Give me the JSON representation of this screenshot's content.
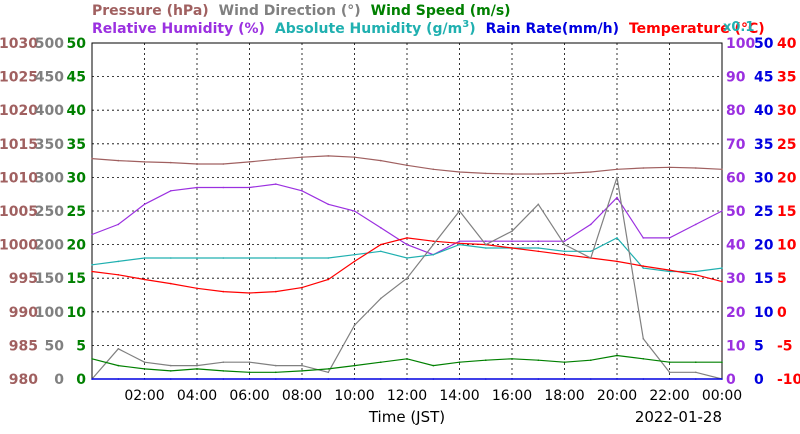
{
  "legend": {
    "row1": [
      {
        "text": "Pressure (hPa)",
        "color": "#a06060"
      },
      {
        "text": "Wind Direction (°)",
        "color": "#808080"
      },
      {
        "text": "Wind Speed (m/s)",
        "color": "#008000"
      }
    ],
    "row2": [
      {
        "text": "Relative Humidity (%)",
        "color": "#9b30e0"
      },
      {
        "text": "Absolute Humidity (g/m",
        "sup": "3",
        "close": ")",
        "color": "#20b0b0"
      },
      {
        "text": "Rain Rate(mm/h)",
        "color": "#0000e0"
      },
      {
        "text": "Temperature (°C)",
        "color": "#ff0000"
      }
    ],
    "factor": "x0.1",
    "factor_color": "#20b0b0"
  },
  "axes": {
    "pressure": {
      "ticks": [
        "1030",
        "1025",
        "1020",
        "1015",
        "1010",
        "1005",
        "1000",
        "995",
        "990",
        "985",
        "980"
      ],
      "color": "#a06060"
    },
    "wind_dir": {
      "ticks": [
        "500",
        "450",
        "400",
        "350",
        "300",
        "250",
        "200",
        "150",
        "100",
        "50",
        "0"
      ],
      "color": "#808080"
    },
    "wind_speed": {
      "ticks": [
        "50",
        "45",
        "40",
        "35",
        "30",
        "25",
        "20",
        "15",
        "10",
        "5",
        "0"
      ],
      "color": "#008000"
    },
    "humidity": {
      "ticks": [
        "100",
        "90",
        "80",
        "70",
        "60",
        "50",
        "40",
        "30",
        "20",
        "10",
        "0"
      ],
      "color": "#9b30e0"
    },
    "rain": {
      "ticks": [
        "50",
        "45",
        "40",
        "35",
        "30",
        "25",
        "20",
        "15",
        "10",
        "5",
        "0"
      ],
      "color": "#0000e0"
    },
    "temperature": {
      "ticks": [
        "40",
        "35",
        "30",
        "25",
        "20",
        "15",
        "10",
        "5",
        "0",
        "-5",
        "-10"
      ],
      "color": "#ff0000"
    }
  },
  "x_ticks": [
    "02:00",
    "04:00",
    "06:00",
    "08:00",
    "10:00",
    "12:00",
    "14:00",
    "16:00",
    "18:00",
    "20:00",
    "22:00",
    "00:00"
  ],
  "xlabel": "Time (JST)",
  "date": "2022-01-28",
  "chart_data": {
    "type": "line",
    "xlabel": "Time (JST)",
    "date": "2022-01-28",
    "x_hours": [
      0,
      1,
      2,
      3,
      4,
      5,
      6,
      7,
      8,
      9,
      10,
      11,
      12,
      13,
      14,
      15,
      16,
      17,
      18,
      19,
      20,
      21,
      22,
      23,
      24
    ],
    "series": [
      {
        "name": "Pressure (hPa)",
        "axis": "pressure",
        "color": "#a06060",
        "values": [
          1012.8,
          1012.5,
          1012.3,
          1012.2,
          1012.0,
          1012.0,
          1012.3,
          1012.7,
          1013.0,
          1013.2,
          1013.0,
          1012.5,
          1011.8,
          1011.2,
          1010.8,
          1010.6,
          1010.5,
          1010.5,
          1010.6,
          1010.8,
          1011.2,
          1011.4,
          1011.5,
          1011.4,
          1011.2
        ]
      },
      {
        "name": "Relative Humidity (%)",
        "axis": "humidity",
        "color": "#9b30e0",
        "values": [
          43,
          46,
          52,
          56,
          57,
          57,
          57,
          58,
          56,
          52,
          50,
          45,
          40,
          37,
          41,
          41,
          41,
          41,
          41,
          46,
          54,
          42,
          42,
          46,
          50
        ]
      },
      {
        "name": "Absolute Humidity (g/m3) x0.1",
        "axis": "humidity",
        "color": "#20b0b0",
        "values": [
          34,
          35,
          36,
          36,
          36,
          36,
          36,
          36,
          36,
          36,
          37,
          38,
          36,
          37,
          40,
          39,
          39,
          39,
          38,
          38,
          42,
          33,
          32,
          32,
          33
        ]
      },
      {
        "name": "Temperature (°C)",
        "axis": "temperature",
        "color": "#ff0000",
        "values": [
          6.0,
          5.5,
          4.8,
          4.2,
          3.5,
          3.0,
          2.8,
          3.0,
          3.6,
          4.8,
          7.5,
          10.0,
          11.0,
          10.5,
          10.2,
          10.0,
          9.5,
          9.0,
          8.5,
          8.0,
          7.5,
          6.8,
          6.2,
          5.5,
          4.5
        ]
      },
      {
        "name": "Wind Direction (°)",
        "axis": "wind_dir",
        "color": "#808080",
        "values": [
          0,
          45,
          25,
          20,
          20,
          25,
          25,
          20,
          20,
          10,
          80,
          120,
          150,
          200,
          250,
          200,
          220,
          260,
          200,
          180,
          300,
          60,
          10,
          10,
          0
        ]
      },
      {
        "name": "Wind Speed (m/s)",
        "axis": "wind_speed",
        "color": "#008000",
        "values": [
          3,
          2,
          1.5,
          1.2,
          1.5,
          1.2,
          1.0,
          1.0,
          1.2,
          1.5,
          2.0,
          2.5,
          3.0,
          2.0,
          2.5,
          2.8,
          3.0,
          2.8,
          2.5,
          2.8,
          3.5,
          3.0,
          2.5,
          2.5,
          2.5
        ]
      },
      {
        "name": "Rain Rate(mm/h)",
        "axis": "rain",
        "color": "#0000e0",
        "values": [
          0,
          0,
          0,
          0,
          0,
          0,
          0,
          0,
          0,
          0,
          0,
          0,
          0,
          0,
          0,
          0,
          0,
          0,
          0,
          0,
          0,
          0,
          0,
          0,
          0
        ]
      }
    ],
    "axis_ranges": {
      "pressure": [
        980,
        1030
      ],
      "wind_dir": [
        0,
        500
      ],
      "wind_speed": [
        0,
        50
      ],
      "humidity": [
        0,
        100
      ],
      "rain": [
        0,
        50
      ],
      "temperature": [
        -10,
        40
      ]
    },
    "grid": true
  }
}
